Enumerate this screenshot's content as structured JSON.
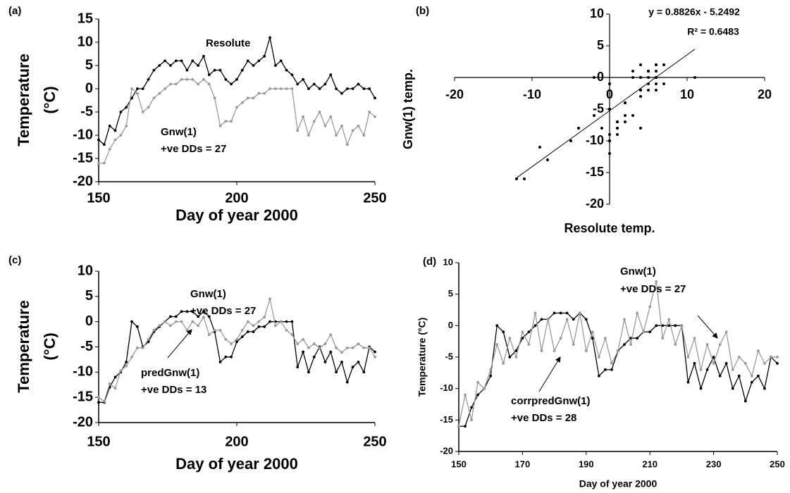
{
  "chart_data": [
    {
      "type": "line",
      "panel_label": "(a)",
      "xlabel": "Day of year 2000",
      "ylabel": [
        "Temperature",
        "(°C)"
      ],
      "x": [
        150,
        152,
        154,
        156,
        158,
        160,
        162,
        164,
        166,
        168,
        170,
        172,
        174,
        176,
        178,
        180,
        182,
        184,
        186,
        188,
        190,
        192,
        194,
        196,
        198,
        200,
        202,
        204,
        206,
        208,
        210,
        212,
        214,
        216,
        218,
        220,
        222,
        224,
        226,
        228,
        230,
        232,
        234,
        236,
        238,
        240,
        242,
        244,
        246,
        248,
        250
      ],
      "series": [
        {
          "name": "Resolute",
          "color": "#000000",
          "values": [
            -11,
            -12,
            -8,
            -9,
            -5,
            -4,
            -2,
            0,
            0,
            2,
            4,
            5,
            6,
            5,
            6,
            6,
            4,
            6,
            5,
            7,
            3,
            4,
            4,
            2,
            1,
            2,
            4,
            6,
            5,
            6,
            7,
            11,
            5,
            6,
            4,
            3,
            1,
            2,
            0,
            1,
            0,
            1,
            3,
            0,
            -1,
            0,
            0,
            1,
            0,
            0,
            -2
          ]
        },
        {
          "name": "Gnw(1)",
          "color": "#999999",
          "values": [
            -16,
            -16,
            -13,
            -11,
            -10,
            -8,
            0,
            -1,
            -5,
            -4,
            -2,
            -1,
            0,
            1,
            1,
            2,
            2,
            2,
            1,
            2,
            1,
            -2,
            -8,
            -7,
            -7,
            -4,
            -3,
            -2,
            -2,
            -1,
            -1,
            0,
            0,
            0,
            0,
            0,
            -9,
            -6,
            -10,
            -7,
            -5,
            -8,
            -6,
            -10,
            -8,
            -12,
            -9,
            -8,
            -10,
            -5,
            -6
          ]
        }
      ],
      "annotations": [
        "+ve DDs = 27"
      ],
      "xlim": [
        150,
        250
      ],
      "xticks": [
        150,
        200,
        250
      ],
      "ylim": [
        -20,
        15
      ],
      "yticks": [
        15,
        10,
        5,
        0,
        -5,
        -10,
        -15,
        -20
      ]
    },
    {
      "type": "scatter",
      "panel_label": "(b)",
      "xlabel": "Resolute temp.",
      "ylabel": "Gnw(1) temp.",
      "x": [
        -11,
        -12,
        -8,
        -9,
        -5,
        -4,
        -2,
        0,
        0,
        2,
        4,
        5,
        6,
        5,
        6,
        6,
        4,
        6,
        5,
        7,
        3,
        4,
        4,
        2,
        1,
        2,
        4,
        6,
        5,
        6,
        7,
        11,
        5,
        6,
        4,
        3,
        1,
        2,
        0,
        1,
        0,
        1,
        3,
        0,
        -1,
        0,
        0,
        1,
        0,
        0,
        -2
      ],
      "y": [
        -16,
        -16,
        -13,
        -11,
        -10,
        -8,
        0,
        -1,
        -5,
        -4,
        -2,
        -1,
        0,
        1,
        1,
        2,
        2,
        2,
        1,
        2,
        1,
        -2,
        -8,
        -7,
        -7,
        -4,
        -3,
        -2,
        -2,
        -1,
        -1,
        0,
        0,
        0,
        0,
        0,
        -9,
        -6,
        -10,
        -7,
        -5,
        -8,
        -6,
        -10,
        -8,
        -12,
        -9,
        -8,
        -10,
        -5,
        -6
      ],
      "color": "#000000",
      "trendline": {
        "equation": "y = 0.8826x - 5.2492",
        "r_squared": "R² = 0.6483",
        "slope": 0.8826,
        "intercept": -5.2492
      },
      "xlim": [
        -20,
        20
      ],
      "xticks": [
        -20,
        -10,
        0,
        10,
        20
      ],
      "ylim": [
        -20,
        10
      ],
      "yticks": [
        10,
        5,
        0,
        -5,
        -10,
        -15,
        -20
      ]
    },
    {
      "type": "line",
      "panel_label": "(c)",
      "xlabel": "Day of year 2000",
      "ylabel": [
        "Temperature",
        "(°C)"
      ],
      "x": [
        150,
        152,
        154,
        156,
        158,
        160,
        162,
        164,
        166,
        168,
        170,
        172,
        174,
        176,
        178,
        180,
        182,
        184,
        186,
        188,
        190,
        192,
        194,
        196,
        198,
        200,
        202,
        204,
        206,
        208,
        210,
        212,
        214,
        216,
        218,
        220,
        222,
        224,
        226,
        228,
        230,
        232,
        234,
        236,
        238,
        240,
        242,
        244,
        246,
        248,
        250
      ],
      "series": [
        {
          "name": "Gnw(1)",
          "color": "#000000",
          "values": [
            -16,
            -16,
            -13,
            -11,
            -10,
            -8,
            0,
            -1,
            -5,
            -4,
            -2,
            -1,
            0,
            1,
            1,
            2,
            2,
            2,
            1,
            2,
            1,
            -2,
            -8,
            -7,
            -7,
            -4,
            -3,
            -2,
            -2,
            -1,
            -1,
            0,
            0,
            0,
            0,
            0,
            -9,
            -6,
            -10,
            -7,
            -5,
            -8,
            -6,
            -10,
            -8,
            -12,
            -9,
            -8,
            -10,
            -5,
            -6
          ]
        },
        {
          "name": "predGnw(1)",
          "color": "#999999",
          "values": [
            -15,
            -15.8,
            -12.3,
            -13.2,
            -9.7,
            -8.8,
            -7,
            -5.2,
            -5.2,
            -3.5,
            -1.7,
            -0.8,
            0,
            -0.8,
            0,
            0,
            -1.7,
            0,
            -0.8,
            0.9,
            -2.6,
            -1.7,
            -1.7,
            -3.5,
            -4.4,
            -3.5,
            -1.7,
            0,
            -0.8,
            0,
            0.9,
            4.5,
            -0.8,
            0,
            -1.7,
            -2.6,
            -4.4,
            -3.5,
            -5.2,
            -4.4,
            -5.2,
            -4.4,
            -2.6,
            -5.2,
            -6.1,
            -5.2,
            -5.2,
            -4.4,
            -5.2,
            -5.2,
            -7
          ]
        }
      ],
      "annotations": [
        "+ve DDs = 27",
        "+ve DDs = 13"
      ],
      "xlim": [
        150,
        250
      ],
      "xticks": [
        150,
        200,
        250
      ],
      "ylim": [
        -20,
        10
      ],
      "yticks": [
        10,
        5,
        0,
        -5,
        -10,
        -15,
        -20
      ]
    },
    {
      "type": "line",
      "panel_label": "(d)",
      "xlabel": "Day of year 2000",
      "ylabel": "Temperature (°C)",
      "x": [
        150,
        152,
        154,
        156,
        158,
        160,
        162,
        164,
        166,
        168,
        170,
        172,
        174,
        176,
        178,
        180,
        182,
        184,
        186,
        188,
        190,
        192,
        194,
        196,
        198,
        200,
        202,
        204,
        206,
        208,
        210,
        212,
        214,
        216,
        218,
        220,
        222,
        224,
        226,
        228,
        230,
        232,
        234,
        236,
        238,
        240,
        242,
        244,
        246,
        248,
        250
      ],
      "series": [
        {
          "name": "Gnw(1)",
          "color": "#000000",
          "values": [
            -16,
            -16,
            -13,
            -11,
            -10,
            -8,
            0,
            -1,
            -5,
            -4,
            -2,
            -1,
            0,
            1,
            1,
            2,
            2,
            2,
            1,
            2,
            1,
            -2,
            -8,
            -7,
            -7,
            -4,
            -3,
            -2,
            -2,
            -1,
            -1,
            0,
            0,
            0,
            0,
            0,
            -9,
            -6,
            -10,
            -7,
            -5,
            -8,
            -6,
            -10,
            -8,
            -12,
            -9,
            -8,
            -10,
            -5,
            -6
          ]
        },
        {
          "name": "corrpredGnw(1)",
          "color": "#999999",
          "values": [
            -16,
            -11,
            -15,
            -9,
            -10,
            -7,
            -3,
            -6,
            -2,
            -5,
            -1,
            -3,
            2,
            -4,
            1,
            -4,
            -2,
            1,
            -3,
            2,
            -4,
            -1,
            -5,
            -2,
            -6,
            -4,
            1,
            -3,
            2,
            -1,
            3,
            7,
            -2,
            1,
            -3,
            0,
            -5,
            -2,
            -7,
            -3,
            -6,
            -3,
            -1,
            -7,
            -5,
            -6,
            -8,
            -4,
            -6,
            -5,
            -5
          ]
        }
      ],
      "annotations": [
        "+ve DDs = 27",
        "+ve DDs = 28"
      ],
      "xlim": [
        150,
        250
      ],
      "xticks": [
        150,
        170,
        190,
        210,
        230,
        250
      ],
      "ylim": [
        -20,
        10
      ],
      "yticks": [
        10,
        5,
        0,
        -5,
        -10,
        -15,
        -20
      ]
    }
  ]
}
